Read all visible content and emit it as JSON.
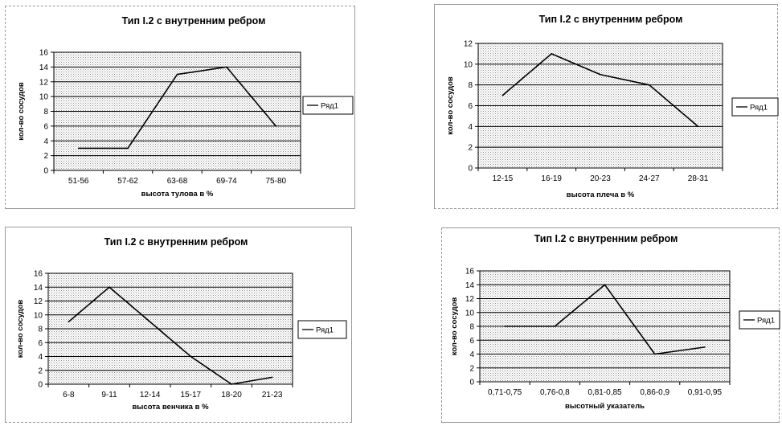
{
  "colors": {
    "line": "#000000",
    "grid": "#000000",
    "plot_bg": "#e6e6e6"
  },
  "chart_data": [
    {
      "type": "line",
      "title": "Тип I.2 с внутренним ребром",
      "xlabel": "высота тулова в %",
      "ylabel": "кол-во сосудов",
      "categories": [
        "51-56",
        "57-62",
        "63-68",
        "69-74",
        "75-80"
      ],
      "series": [
        {
          "name": "Ряд1",
          "values": [
            3,
            3,
            13,
            14,
            6
          ]
        }
      ],
      "ylim": [
        0,
        16
      ],
      "ystep": 2,
      "grid": true,
      "legend": "right"
    },
    {
      "type": "line",
      "title": "Тип I.2 с внутренним ребром",
      "xlabel": "высота плеча в %",
      "ylabel": "кол-во сосудов",
      "categories": [
        "12-15",
        "16-19",
        "20-23",
        "24-27",
        "28-31"
      ],
      "series": [
        {
          "name": "Ряд1",
          "values": [
            7,
            11,
            9,
            8,
            4
          ]
        }
      ],
      "ylim": [
        0,
        12
      ],
      "ystep": 2,
      "grid": true,
      "legend": "right"
    },
    {
      "type": "line",
      "title": "Тип I.2 с внутренним ребром",
      "xlabel": "высота венчика в %",
      "ylabel": "кол-во сосудов",
      "categories": [
        "6-8",
        "9-11",
        "12-14",
        "15-17",
        "18-20",
        "21-23"
      ],
      "series": [
        {
          "name": "Ряд1",
          "values": [
            9,
            14,
            9,
            4,
            0,
            1
          ]
        }
      ],
      "ylim": [
        0,
        16
      ],
      "ystep": 2,
      "grid": true,
      "legend": "right"
    },
    {
      "type": "line",
      "title": "Тип I.2 с внутренним ребром",
      "xlabel": "высотный указатель",
      "ylabel": "кол-во сосудов",
      "categories": [
        "0,71-0,75",
        "0,76-0,8",
        "0,81-0,85",
        "0,86-0,9",
        "0,91-0,95"
      ],
      "series": [
        {
          "name": "Ряд1",
          "values": [
            8,
            8,
            14,
            4,
            5
          ]
        }
      ],
      "ylim": [
        0,
        16
      ],
      "ystep": 2,
      "grid": true,
      "legend": "right"
    }
  ]
}
